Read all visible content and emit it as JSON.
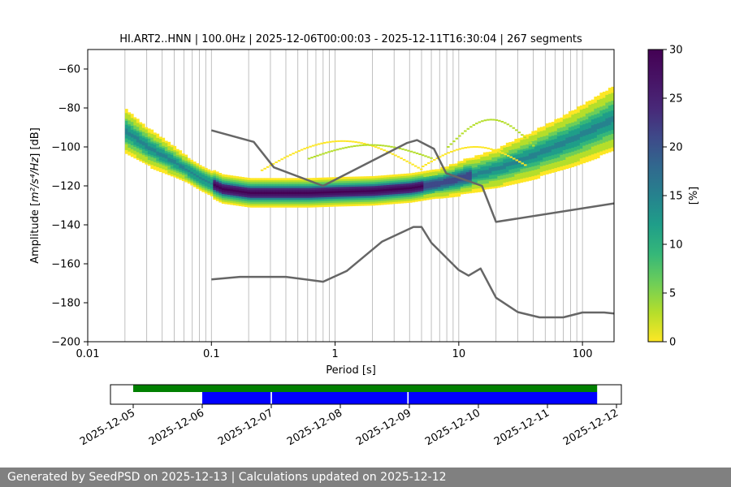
{
  "chart_data": [
    {
      "type": "heatmap",
      "title": "HI.ART2..HNN | 100.0Hz | 2025-12-06T00:00:03 - 2025-12-11T16:30:04 | 267 segments",
      "xlabel": "Period [s]",
      "ylabel_main": "Amplitude [",
      "ylabel_unit": "m²/s⁴/Hz",
      "ylabel_end": "] [dB]",
      "x_scale": "log",
      "xlim": [
        0.01,
        180
      ],
      "ylim": [
        -200,
        -50
      ],
      "x_ticks": [
        {
          "v": 0.01,
          "label": "0.01"
        },
        {
          "v": 0.1,
          "label": "0.1"
        },
        {
          "v": 1,
          "label": "1"
        },
        {
          "v": 10,
          "label": "10"
        },
        {
          "v": 100,
          "label": "100"
        }
      ],
      "y_ticks": [
        {
          "v": -60,
          "label": "−60"
        },
        {
          "v": -80,
          "label": "−80"
        },
        {
          "v": -100,
          "label": "−100"
        },
        {
          "v": -120,
          "label": "−120"
        },
        {
          "v": -140,
          "label": "−140"
        },
        {
          "v": -160,
          "label": "−160"
        },
        {
          "v": -180,
          "label": "−180"
        },
        {
          "v": -200,
          "label": "−200"
        }
      ],
      "grid": "vertical",
      "colorbar": {
        "label": "[%]",
        "range": [
          0,
          30
        ],
        "ticks": [
          {
            "v": 0,
            "label": "0"
          },
          {
            "v": 5,
            "label": "5"
          },
          {
            "v": 10,
            "label": "10"
          },
          {
            "v": 15,
            "label": "15"
          },
          {
            "v": 20,
            "label": "20"
          },
          {
            "v": 25,
            "label": "25"
          },
          {
            "v": 30,
            "label": "30"
          }
        ],
        "colormap": "viridis_r"
      },
      "series": [
        {
          "name": "noise-model-high",
          "x": [
            0.1,
            0.22,
            0.32,
            0.8,
            3.8,
            4.6,
            6.3,
            7.9,
            15.4,
            20,
            180
          ],
          "y": [
            -91.5,
            -97.4,
            -110.5,
            -120,
            -98,
            -96.5,
            -101,
            -113.5,
            -120,
            -138.5,
            -129
          ]
        },
        {
          "name": "noise-model-low",
          "x": [
            0.1,
            0.17,
            0.4,
            0.8,
            1.24,
            2.4,
            4.3,
            5,
            6,
            10,
            12,
            15,
            20,
            30,
            45,
            70,
            100,
            150,
            180
          ],
          "y": [
            -168,
            -166.7,
            -166.7,
            -169.2,
            -163.7,
            -148.6,
            -141.1,
            -141.1,
            -149.2,
            -163.2,
            -166.1,
            -162.4,
            -177.4,
            -184.8,
            -187.5,
            -187.5,
            -185,
            -185,
            -185.5
          ]
        }
      ],
      "psd_mode": {
        "x": [
          0.02,
          0.03,
          0.05,
          0.08,
          0.12,
          0.2,
          0.35,
          0.6,
          1,
          2,
          4,
          7,
          10,
          20,
          40,
          80,
          180
        ],
        "y": [
          -92,
          -100,
          -108,
          -116,
          -121.5,
          -123.5,
          -123.5,
          -123.5,
          -123,
          -122.5,
          -121,
          -118.5,
          -116,
          -111,
          -104,
          -96,
          -85
        ]
      }
    },
    {
      "type": "timeline",
      "x_ticks": [
        "2025-12-05",
        "2025-12-06",
        "2025-12-07",
        "2025-12-08",
        "2025-12-09",
        "2025-12-10",
        "2025-12-11",
        "2025-12-12"
      ],
      "tracks": [
        {
          "name": "available-data",
          "color": "#008000",
          "ranges": [
            [
              0.0,
              6.72
            ]
          ]
        },
        {
          "name": "processed-segments",
          "color": "#0000ff",
          "ranges": [
            [
              1.0,
              1.99
            ],
            [
              2.01,
              3.97
            ],
            [
              3.99,
              6.72
            ]
          ]
        }
      ]
    }
  ],
  "footer": {
    "text": "Generated by SeedPSD on 2025-12-13 | Calculations updated on 2025-12-12"
  }
}
